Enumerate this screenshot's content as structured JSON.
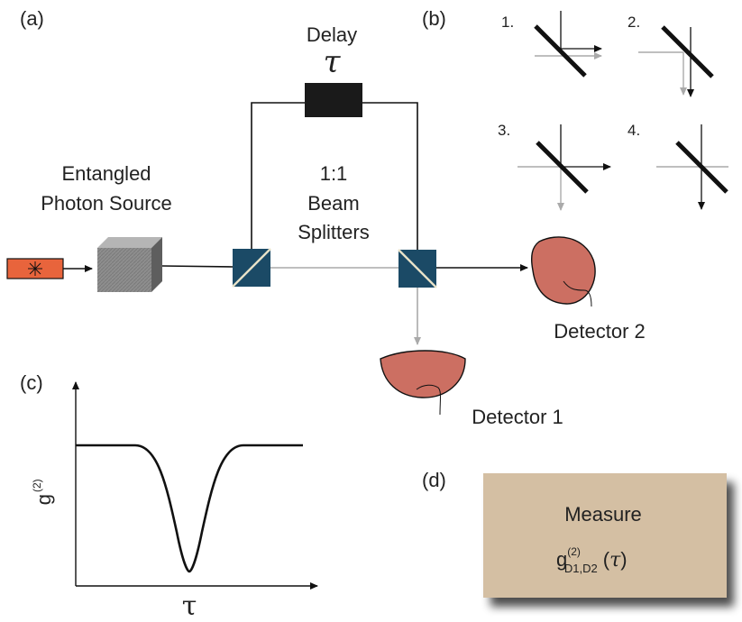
{
  "panels": {
    "a": "(a)",
    "b": "(b)",
    "c": "(c)",
    "d": "(d)"
  },
  "labels": {
    "delay": "Delay",
    "delay_symbol": "τ",
    "source_line1": "Entangled",
    "source_line2": "Photon Source",
    "splitter_line1": "1:1",
    "splitter_line2": "Beam",
    "splitter_line3": "Splitters",
    "detector1": "Detector 1",
    "detector2": "Detector 2"
  },
  "cases": [
    "1.",
    "2.",
    "3.",
    "4."
  ],
  "graph": {
    "ylabel_base": "g",
    "ylabel_sup": "(2)",
    "xlabel": "τ"
  },
  "measure": {
    "title": "Measure",
    "g": "g",
    "sup": "(2)",
    "sub": "D1,D2",
    "open": "(",
    "tau": "τ",
    "close": ")"
  },
  "colors": {
    "beam_dark": "#111111",
    "beam_light": "#b0b0b0",
    "detector_fill": "#cc6f62",
    "splitter_fill": "#1b4a66",
    "laser_fill": "#e8643c",
    "measure_fill": "#d4bfa3"
  }
}
